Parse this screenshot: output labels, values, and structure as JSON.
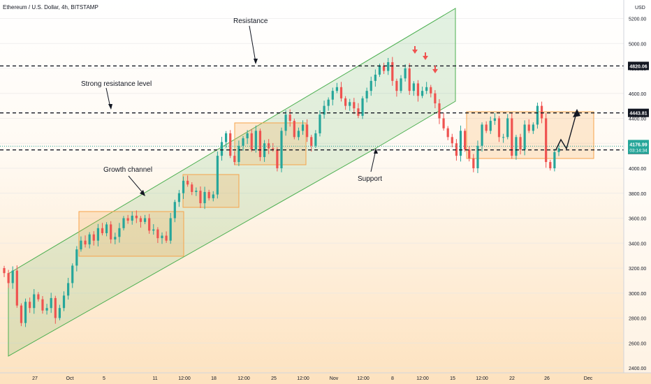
{
  "header": {
    "symbol": "Ethereum / U.S. Dollar, 4h, BITSTAMP",
    "currency": "USD"
  },
  "chart_data": {
    "type": "candlestick",
    "price_axis": {
      "ticks": [
        2400,
        2600,
        2800,
        3000,
        3200,
        3400,
        3600,
        3800,
        4000,
        4200,
        4400,
        4600,
        4800,
        5000,
        5200
      ],
      "tick_labels": [
        "2400.00",
        "2600.00",
        "2800.00",
        "3000.00",
        "3200.00",
        "3400.00",
        "3600.00",
        "3800.00",
        "4000.00",
        "4200.00",
        "4400.00",
        "4600.00",
        "4800.00",
        "5000.00",
        "5200.00"
      ],
      "ylim": [
        2380,
        5400
      ]
    },
    "time_axis": {
      "labels": [
        "27",
        "Oct",
        "5",
        "11",
        "12:00",
        "18",
        "12:00",
        "25",
        "12:00",
        "Nov",
        "12:00",
        "8",
        "12:00",
        "15",
        "12:00",
        "22",
        "26",
        "Dec"
      ]
    },
    "series": [
      {
        "close": [
          3160,
          3080,
          3180,
          2900,
          2760,
          2930,
          2880,
          2990,
          2950,
          2860,
          2880,
          2960,
          2800,
          2880,
          2980,
          3080,
          3220,
          3350,
          3420,
          3390,
          3470,
          3420,
          3520,
          3480,
          3550,
          3430,
          3450,
          3520,
          3600,
          3580,
          3620,
          3600,
          3570,
          3600,
          3500,
          3510,
          3440,
          3460,
          3420,
          3600,
          3730,
          3800,
          3900,
          3870,
          3810,
          3820,
          3720,
          3810,
          3760,
          3790,
          4100,
          4210,
          4280,
          4100,
          4050,
          4180,
          4240,
          4280,
          4150,
          4300,
          4090,
          4200,
          4160,
          4150,
          4000,
          4300,
          4430,
          4380,
          4250,
          4300,
          4350,
          4250,
          4180,
          4280,
          4430,
          4500,
          4550,
          4620,
          4650,
          4560,
          4500,
          4530,
          4480,
          4420,
          4560,
          4620,
          4700,
          4750,
          4820,
          4780,
          4850,
          4700,
          4620,
          4720,
          4800,
          4620,
          4680,
          4580,
          4620,
          4650,
          4600,
          4520,
          4400,
          4320,
          4250,
          4200,
          4100,
          4300,
          4150,
          4080,
          4000,
          4180,
          4350,
          4300,
          4380,
          4400,
          4250,
          4250,
          4400,
          4100,
          4250,
          4150,
          4350,
          4300,
          4350,
          4500,
          4400,
          4050,
          4000,
          4130,
          4160
        ]
      }
    ],
    "levels": [
      {
        "value": 4820.06,
        "label": "4820.06"
      },
      {
        "value": 4443.81,
        "label": "4443.81"
      },
      {
        "value": 4147.14,
        "label": "4147.14"
      }
    ],
    "last_price": {
      "value": 4176.99,
      "label": "4176.99",
      "countdown": "03:14:34"
    },
    "annotations": [
      "Resistance",
      "Strong resistance level",
      "Growth channel",
      "Support"
    ],
    "colors": {
      "up": "#26a69a",
      "down": "#ef5350",
      "channel": "#4caf50",
      "box": "#f7a34a",
      "label_bg": "#131722",
      "price_bg": "#26a69a"
    }
  }
}
